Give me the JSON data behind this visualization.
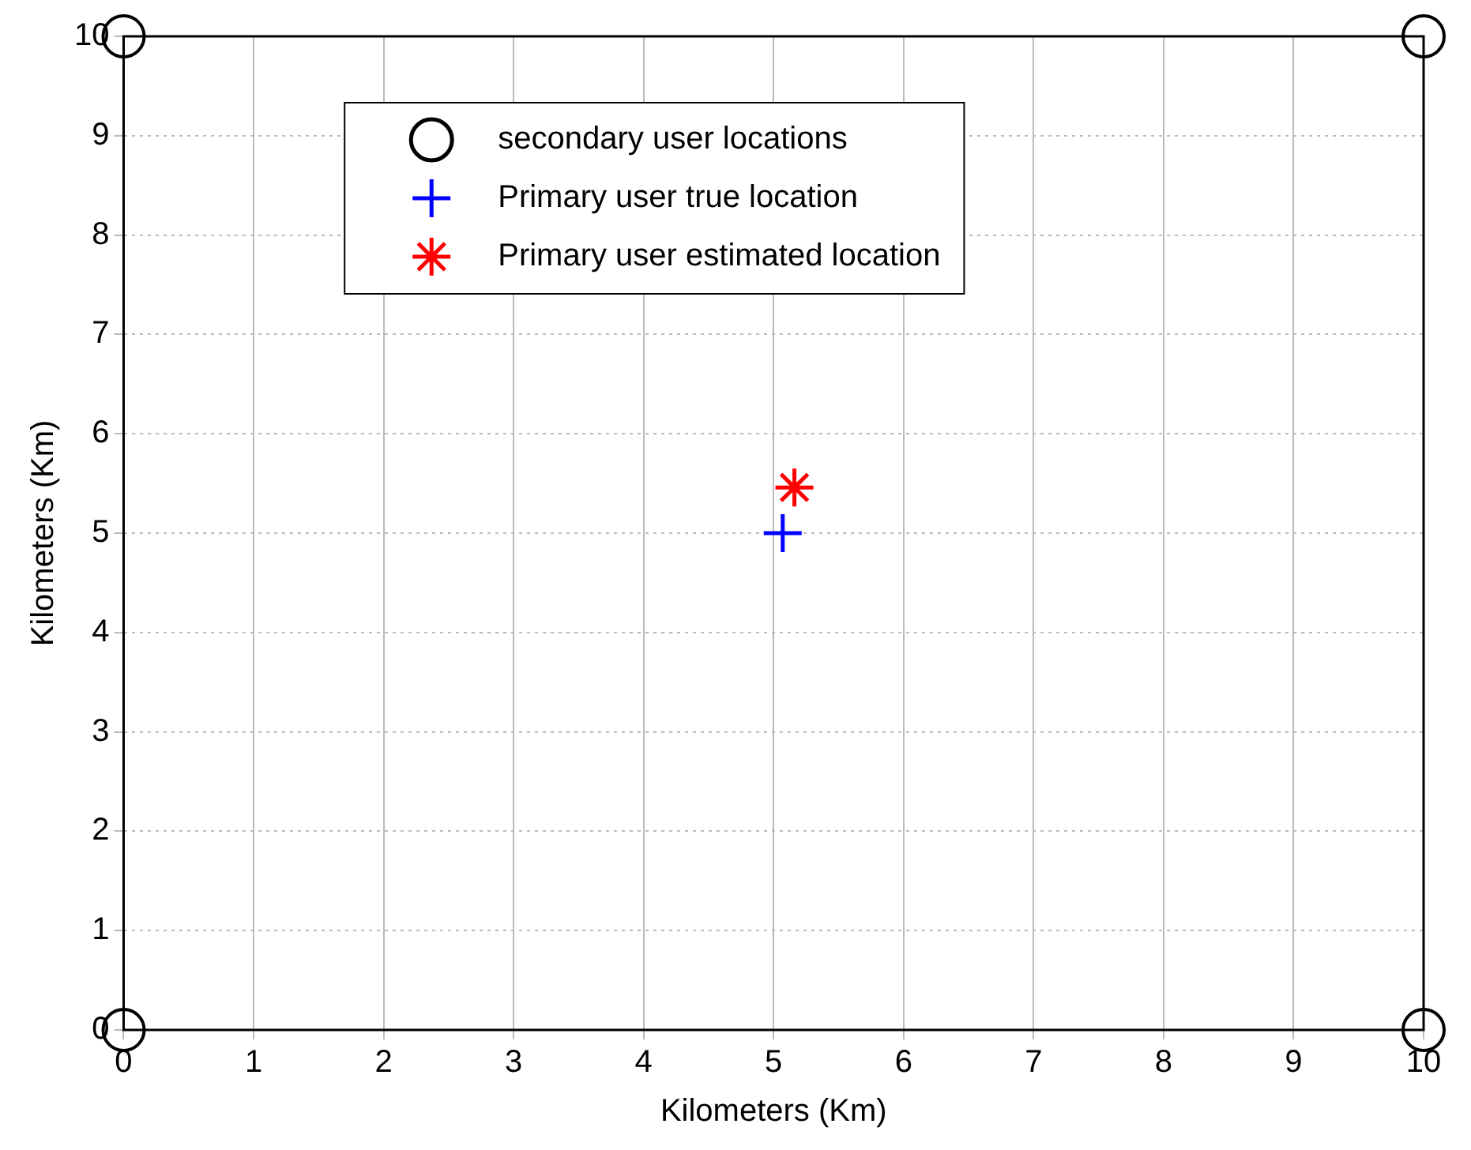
{
  "chart_data": {
    "type": "scatter",
    "xlabel": "Kilometers (Km)",
    "ylabel": "Kilometers (Km)",
    "xlim": [
      0,
      10
    ],
    "ylim": [
      0,
      10
    ],
    "xticks": [
      0,
      1,
      2,
      3,
      4,
      5,
      6,
      7,
      8,
      9,
      10
    ],
    "yticks": [
      0,
      1,
      2,
      3,
      4,
      5,
      6,
      7,
      8,
      9,
      10
    ],
    "grid": true,
    "legend": "top",
    "series": [
      {
        "name": "secondary user locations",
        "color": "#000000",
        "marker": "circle",
        "x": [
          0,
          0,
          10,
          10
        ],
        "values": [
          0,
          10,
          0,
          10
        ]
      },
      {
        "name": "Primary user true location",
        "color": "#0000ff",
        "marker": "cross",
        "x": [
          5.07
        ],
        "values": [
          5.0
        ]
      },
      {
        "name": "Primary user estimated location",
        "color": "#ff0000",
        "marker": "star",
        "x": [
          5.16
        ],
        "values": [
          5.46
        ]
      }
    ]
  }
}
